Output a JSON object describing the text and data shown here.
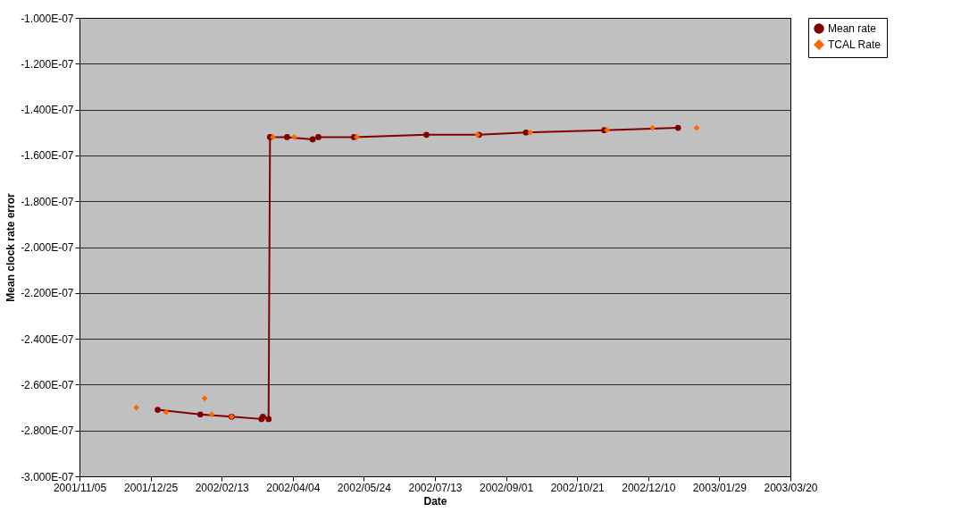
{
  "chart_data": {
    "type": "line",
    "xlabel": "Date",
    "ylabel": "Mean clock rate error",
    "xlim": [
      "2001-11-05",
      "2003-03-20"
    ],
    "xticks": [
      {
        "value": "2001-11-05",
        "label": "2001/11/05"
      },
      {
        "value": "2001-12-25",
        "label": "2001/12/25"
      },
      {
        "value": "2002-02-13",
        "label": "2002/02/13"
      },
      {
        "value": "2002-04-04",
        "label": "2002/04/04"
      },
      {
        "value": "2002-05-24",
        "label": "2002/05/24"
      },
      {
        "value": "2002-07-13",
        "label": "2002/07/13"
      },
      {
        "value": "2002-09-01",
        "label": "2002/09/01"
      },
      {
        "value": "2002-10-21",
        "label": "2002/10/21"
      },
      {
        "value": "2002-12-10",
        "label": "2002/12/10"
      },
      {
        "value": "2003-01-29",
        "label": "2003/01/29"
      },
      {
        "value": "2003-03-20",
        "label": "2003/03/20"
      }
    ],
    "ylim": [
      -3e-07,
      -1e-07
    ],
    "yticks": [
      {
        "value": -3e-07,
        "label": "-3.000E-07"
      },
      {
        "value": -2.8e-07,
        "label": "-2.800E-07"
      },
      {
        "value": -2.6e-07,
        "label": "-2.600E-07"
      },
      {
        "value": -2.4e-07,
        "label": "-2.400E-07"
      },
      {
        "value": -2.2e-07,
        "label": "-2.200E-07"
      },
      {
        "value": -2e-07,
        "label": "-2.000E-07"
      },
      {
        "value": -1.8e-07,
        "label": "-1.800E-07"
      },
      {
        "value": -1.6e-07,
        "label": "-1.600E-07"
      },
      {
        "value": -1.4e-07,
        "label": "-1.400E-07"
      },
      {
        "value": -1.2e-07,
        "label": "-1.200E-07"
      },
      {
        "value": -1e-07,
        "label": "-1.000E-07"
      }
    ],
    "grid": "y",
    "legend": "right",
    "series": [
      {
        "name": "Mean rate",
        "type": "line",
        "color": "#800000",
        "marker": "circle",
        "x": [
          "2001-12-30",
          "2002-01-29",
          "2002-02-20",
          "2002-03-13",
          "2002-03-14",
          "2002-03-18",
          "2002-03-19",
          "2002-03-31",
          "2002-04-18",
          "2002-04-22",
          "2002-05-17",
          "2002-07-07",
          "2002-08-13",
          "2002-09-15",
          "2002-11-09",
          "2002-12-31"
        ],
        "values": [
          -2.71e-07,
          -2.73e-07,
          -2.74e-07,
          -2.75e-07,
          -2.74e-07,
          -2.75e-07,
          -1.52e-07,
          -1.52e-07,
          -1.53e-07,
          -1.52e-07,
          -1.52e-07,
          -1.51e-07,
          -1.51e-07,
          -1.5e-07,
          -1.49e-07,
          -1.48e-07
        ]
      },
      {
        "name": "TCAL Rate",
        "type": "scatter",
        "color": "#ff6600",
        "marker": "diamond",
        "x": [
          "2001-12-15",
          "2002-01-05",
          "2002-02-01",
          "2002-02-06",
          "2002-02-20",
          "2002-03-21",
          "2002-04-05",
          "2002-05-19",
          "2002-08-12",
          "2002-09-18",
          "2002-11-11",
          "2002-12-13",
          "2003-01-13"
        ],
        "values": [
          -2.7e-07,
          -2.72e-07,
          -2.66e-07,
          -2.73e-07,
          -2.74e-07,
          -1.52e-07,
          -1.52e-07,
          -1.52e-07,
          -1.51e-07,
          -1.5e-07,
          -1.49e-07,
          -1.48e-07,
          -1.48e-07
        ]
      }
    ]
  }
}
